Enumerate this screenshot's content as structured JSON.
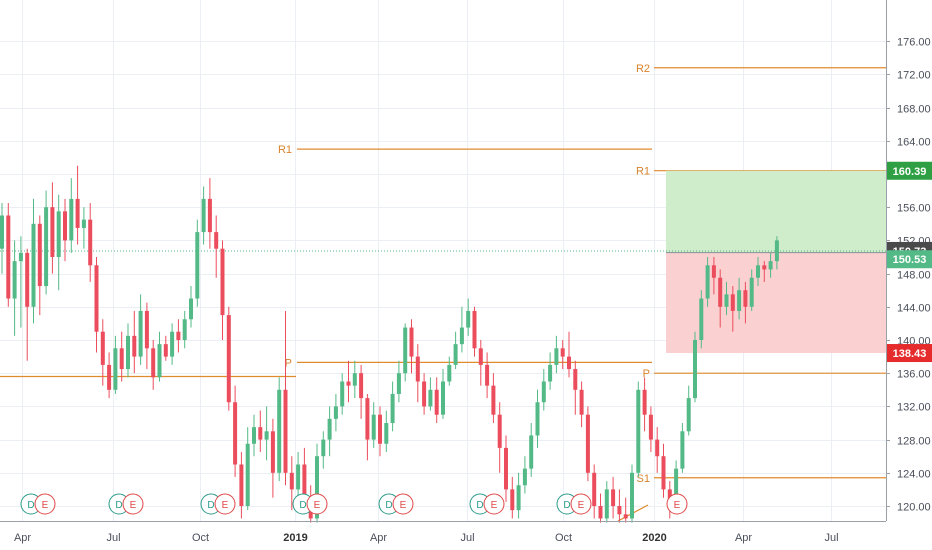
{
  "chart_data": {
    "type": "candlestick",
    "y_axis": {
      "ticks": [
        120,
        124,
        128,
        132,
        136,
        140,
        144,
        148,
        152,
        156,
        160,
        164,
        168,
        172,
        176
      ],
      "tick_labels": [
        "120.00",
        "124.00",
        "128.00",
        "132.00",
        "136.00",
        "140.00",
        "144.00",
        "148.00",
        "152.00",
        "156.00",
        "160.00",
        "164.00",
        "168.00",
        "172.00",
        "176.00"
      ],
      "range": [
        118,
        178
      ]
    },
    "x_axis": {
      "labels": [
        {
          "text": "Apr",
          "major": false
        },
        {
          "text": "Jul",
          "major": false
        },
        {
          "text": "Oct",
          "major": false
        },
        {
          "text": "2019",
          "major": true
        },
        {
          "text": "Apr",
          "major": false
        },
        {
          "text": "Jul",
          "major": false
        },
        {
          "text": "Oct",
          "major": false
        },
        {
          "text": "2020",
          "major": true
        },
        {
          "text": "Apr",
          "major": false
        },
        {
          "text": "Jul",
          "major": false
        }
      ]
    },
    "candles": [
      [
        151.0,
        155.0,
        156.5,
        148.0
      ],
      [
        155.0,
        145.0,
        156.5,
        144.0
      ],
      [
        145.0,
        149.5,
        152.0,
        140.5
      ],
      [
        149.5,
        150.5,
        152.5,
        141.5
      ],
      [
        150.5,
        144.0,
        151.0,
        137.5
      ],
      [
        144.0,
        154.0,
        157.0,
        142.0
      ],
      [
        154.0,
        146.5,
        155.0,
        143.0
      ],
      [
        146.5,
        156.0,
        158.0,
        145.5
      ],
      [
        156.0,
        150.0,
        159.0,
        148.0
      ],
      [
        150.0,
        155.5,
        157.5,
        146.0
      ],
      [
        155.5,
        152.0,
        157.0,
        149.5
      ],
      [
        152.0,
        157.0,
        159.5,
        150.5
      ],
      [
        157.0,
        153.5,
        161.0,
        151.5
      ],
      [
        153.5,
        154.5,
        156.0,
        151.0
      ],
      [
        154.5,
        149.0,
        156.5,
        147.0
      ],
      [
        149.0,
        141.0,
        150.0,
        138.5
      ],
      [
        141.0,
        137.0,
        142.5,
        134.5
      ],
      [
        137.0,
        134.0,
        138.5,
        133.0
      ],
      [
        134.0,
        139.0,
        140.5,
        133.5
      ],
      [
        139.0,
        136.5,
        141.0,
        135.0
      ],
      [
        136.5,
        140.5,
        142.0,
        135.5
      ],
      [
        140.5,
        138.0,
        143.5,
        136.0
      ],
      [
        138.0,
        143.5,
        145.5,
        137.0
      ],
      [
        143.5,
        139.0,
        144.5,
        136.5
      ],
      [
        139.0,
        135.5,
        140.0,
        134.0
      ],
      [
        135.5,
        139.5,
        141.0,
        135.0
      ],
      [
        139.5,
        138.0,
        140.5,
        137.5
      ],
      [
        138.0,
        141.0,
        142.0,
        137.0
      ],
      [
        141.0,
        140.0,
        142.5,
        138.5
      ],
      [
        140.0,
        142.5,
        143.5,
        139.0
      ],
      [
        142.5,
        145.0,
        146.5,
        141.5
      ],
      [
        145.0,
        153.0,
        154.5,
        144.0
      ],
      [
        153.0,
        157.0,
        158.5,
        151.5
      ],
      [
        157.0,
        153.0,
        159.5,
        151.0
      ],
      [
        153.0,
        151.0,
        155.0,
        147.5
      ],
      [
        151.0,
        143.0,
        152.0,
        140.0
      ],
      [
        143.0,
        132.5,
        144.0,
        131.5
      ],
      [
        132.5,
        125.0,
        134.5,
        123.5
      ],
      [
        125.0,
        120.0,
        126.5,
        118.5
      ],
      [
        120.0,
        127.5,
        129.5,
        119.5
      ],
      [
        127.5,
        129.5,
        131.0,
        126.0
      ],
      [
        129.5,
        128.0,
        131.5,
        126.5
      ],
      [
        128.0,
        129.0,
        132.0,
        125.5
      ],
      [
        129.0,
        124.0,
        130.5,
        121.0
      ],
      [
        124.0,
        134.0,
        135.5,
        123.0
      ],
      [
        134.0,
        124.0,
        143.5,
        122.5
      ],
      [
        124.0,
        122.0,
        126.0,
        119.5
      ],
      [
        122.0,
        125.0,
        126.5,
        120.5
      ],
      [
        125.0,
        121.0,
        127.0,
        119.5
      ],
      [
        121.0,
        118.5,
        122.5,
        118.0
      ],
      [
        118.5,
        126.0,
        127.5,
        118.0
      ],
      [
        126.0,
        128.0,
        129.0,
        124.5
      ],
      [
        128.0,
        130.5,
        132.0,
        126.0
      ],
      [
        130.5,
        132.0,
        133.5,
        129.0
      ],
      [
        132.0,
        135.0,
        136.0,
        131.0
      ],
      [
        135.0,
        134.5,
        137.5,
        132.5
      ],
      [
        134.5,
        136.0,
        137.5,
        133.0
      ],
      [
        136.0,
        133.0,
        137.0,
        130.5
      ],
      [
        133.0,
        128.0,
        133.5,
        125.5
      ],
      [
        128.0,
        131.0,
        132.5,
        127.0
      ],
      [
        131.0,
        127.5,
        132.0,
        126.0
      ],
      [
        127.5,
        130.0,
        131.5,
        126.5
      ],
      [
        130.0,
        133.5,
        135.0,
        129.0
      ],
      [
        133.5,
        136.0,
        137.5,
        132.5
      ],
      [
        136.0,
        141.5,
        142.0,
        135.0
      ],
      [
        141.5,
        138.0,
        142.5,
        136.0
      ],
      [
        138.0,
        135.0,
        139.5,
        132.5
      ],
      [
        135.0,
        132.0,
        136.0,
        131.0
      ],
      [
        132.0,
        134.0,
        135.5,
        131.5
      ],
      [
        134.0,
        131.0,
        135.5,
        130.0
      ],
      [
        131.0,
        135.0,
        136.5,
        130.5
      ],
      [
        135.0,
        137.0,
        138.0,
        134.5
      ],
      [
        137.0,
        139.5,
        141.0,
        136.5
      ],
      [
        139.5,
        141.5,
        144.0,
        138.5
      ],
      [
        141.5,
        143.5,
        145.0,
        140.5
      ],
      [
        143.5,
        139.0,
        144.0,
        138.0
      ],
      [
        139.0,
        137.0,
        140.0,
        134.5
      ],
      [
        137.0,
        134.5,
        138.5,
        133.0
      ],
      [
        134.5,
        131.0,
        136.0,
        130.0
      ],
      [
        131.0,
        127.0,
        132.5,
        124.0
      ],
      [
        127.0,
        122.0,
        128.5,
        120.5
      ],
      [
        122.0,
        119.5,
        123.5,
        118.5
      ],
      [
        119.5,
        122.5,
        124.0,
        118.5
      ],
      [
        122.5,
        124.5,
        126.0,
        121.5
      ],
      [
        124.5,
        128.5,
        130.0,
        123.5
      ],
      [
        128.5,
        132.5,
        134.0,
        127.0
      ],
      [
        132.5,
        135.0,
        136.5,
        131.5
      ],
      [
        135.0,
        137.0,
        138.5,
        134.0
      ],
      [
        137.0,
        139.0,
        140.5,
        136.0
      ],
      [
        139.0,
        138.0,
        140.0,
        136.5
      ],
      [
        138.0,
        136.5,
        141.0,
        135.5
      ],
      [
        136.5,
        134.0,
        137.5,
        131.0
      ],
      [
        134.0,
        131.0,
        135.0,
        129.5
      ],
      [
        131.0,
        124.0,
        132.0,
        123.0
      ],
      [
        124.0,
        120.0,
        125.0,
        118.5
      ],
      [
        120.0,
        118.5,
        121.5,
        118.0
      ],
      [
        118.5,
        122.0,
        123.0,
        118.0
      ],
      [
        122.0,
        120.0,
        123.5,
        118.5
      ],
      [
        120.0,
        119.0,
        122.0,
        118.0
      ],
      [
        119.0,
        118.5,
        121.0,
        118.0
      ],
      [
        118.5,
        124.0,
        125.0,
        118.0
      ],
      [
        124.0,
        134.0,
        135.0,
        123.5
      ],
      [
        134.0,
        131.0,
        135.5,
        129.0
      ],
      [
        131.0,
        128.0,
        132.0,
        126.5
      ],
      [
        128.0,
        126.0,
        129.5,
        124.0
      ],
      [
        126.0,
        122.0,
        127.5,
        121.0
      ],
      [
        122.0,
        120.0,
        123.0,
        118.5
      ],
      [
        120.0,
        124.5,
        125.5,
        119.5
      ],
      [
        124.5,
        129.0,
        130.0,
        124.0
      ],
      [
        129.0,
        133.0,
        134.5,
        128.5
      ],
      [
        133.0,
        140.0,
        141.0,
        132.5
      ],
      [
        140.0,
        145.0,
        146.0,
        139.0
      ],
      [
        145.0,
        149.0,
        150.0,
        144.0
      ],
      [
        149.0,
        147.5,
        150.0,
        145.5
      ],
      [
        147.5,
        144.0,
        148.5,
        141.5
      ],
      [
        144.0,
        145.5,
        147.0,
        143.0
      ],
      [
        145.5,
        143.5,
        146.5,
        141.0
      ],
      [
        143.5,
        146.0,
        147.5,
        142.5
      ],
      [
        146.0,
        144.0,
        147.0,
        142.0
      ],
      [
        144.0,
        147.5,
        148.5,
        143.5
      ],
      [
        147.5,
        149.0,
        150.0,
        146.5
      ],
      [
        149.0,
        148.5,
        149.5,
        147.0
      ],
      [
        148.5,
        149.5,
        150.5,
        147.5
      ],
      [
        149.5,
        152.0,
        152.5,
        148.5
      ]
    ],
    "pivot_levels_prev": [
      {
        "label": "R1",
        "value": 163.0
      },
      {
        "label": "P",
        "value": 137.3
      }
    ],
    "pivot_levels_curr": [
      {
        "label": "R2",
        "value": 172.8
      },
      {
        "label": "R1",
        "value": 160.4
      },
      {
        "label": "P",
        "value": 136.0
      },
      {
        "label": "S1",
        "value": 123.4
      }
    ],
    "pivot_first_segment": {
      "value": 135.6
    },
    "current_price": {
      "value": 150.73,
      "label": "150.73"
    },
    "position": {
      "target": 160.39,
      "target_label": "160.39",
      "entry": 150.53,
      "entry_label": "150.53",
      "stop": 138.43,
      "stop_label": "138.43"
    },
    "events": [
      {
        "letters": [
          "D",
          "E"
        ]
      },
      {
        "letters": [
          "D",
          "E"
        ]
      },
      {
        "letters": [
          "D",
          "E"
        ]
      },
      {
        "letters": [
          "D",
          "E"
        ]
      },
      {
        "letters": [
          "D",
          "E"
        ]
      },
      {
        "letters": [
          "D",
          "E"
        ]
      },
      {
        "letters": [
          "D",
          "E"
        ]
      },
      {
        "letters": [
          "E"
        ]
      }
    ],
    "colors": {
      "up": "#53b987",
      "down": "#eb4d5c",
      "pivot": "#e08a2e",
      "target_zone": "#cfeccb",
      "stop_zone": "#fbd0d0",
      "target_badge": "#2ea043",
      "stop_badge": "#e52b2b",
      "price_badge": "#4a4a4a",
      "entry_badge": "#53b987",
      "dividend": "#2b9a8c",
      "earnings": "#e04848"
    }
  }
}
